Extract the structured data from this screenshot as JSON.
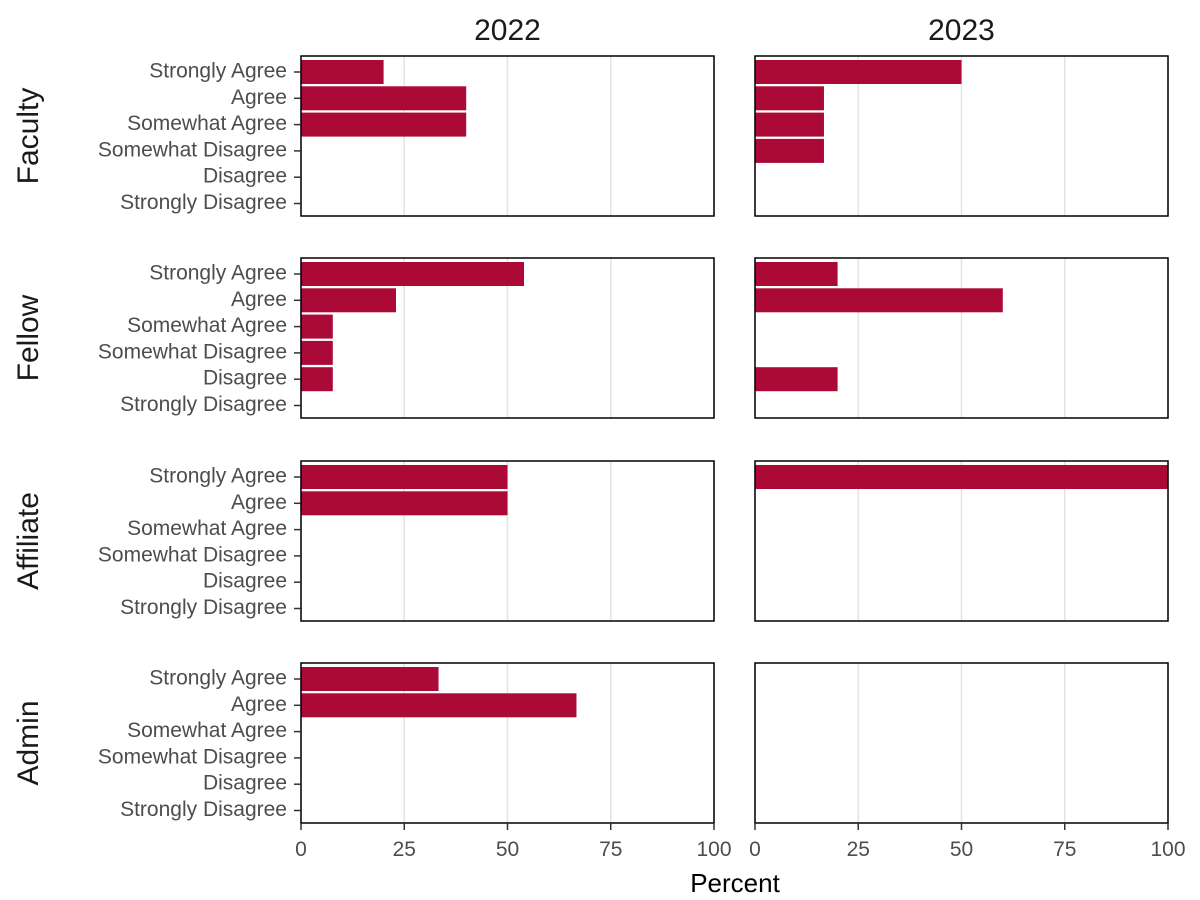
{
  "chart_data": {
    "type": "bar",
    "orientation": "horizontal",
    "facet_columns": [
      "2022",
      "2023"
    ],
    "facet_rows": [
      "Faculty",
      "Fellow",
      "Affiliate",
      "Admin"
    ],
    "categories": [
      "Strongly Agree",
      "Agree",
      "Somewhat Agree",
      "Somewhat Disagree",
      "Disagree",
      "Strongly Disagree"
    ],
    "xlabel": "Percent",
    "xlim": [
      0,
      100
    ],
    "xticks": [
      "0",
      "25",
      "50",
      "75",
      "100"
    ],
    "grid": "vertical major",
    "bar_color": "#AB0A36",
    "panels": [
      {
        "row": "Faculty",
        "column": "2022",
        "values": [
          20,
          40,
          40,
          0,
          0,
          0
        ]
      },
      {
        "row": "Faculty",
        "column": "2023",
        "values": [
          50,
          16.7,
          16.7,
          16.7,
          0,
          0
        ]
      },
      {
        "row": "Fellow",
        "column": "2022",
        "values": [
          54,
          23,
          7.7,
          7.7,
          7.7,
          0
        ]
      },
      {
        "row": "Fellow",
        "column": "2023",
        "values": [
          20,
          60,
          0,
          0,
          20,
          0
        ]
      },
      {
        "row": "Affiliate",
        "column": "2022",
        "values": [
          50,
          50,
          0,
          0,
          0,
          0
        ]
      },
      {
        "row": "Affiliate",
        "column": "2023",
        "values": [
          100,
          0,
          0,
          0,
          0,
          0
        ]
      },
      {
        "row": "Admin",
        "column": "2022",
        "values": [
          33.3,
          66.7,
          0,
          0,
          0,
          0
        ]
      },
      {
        "row": "Admin",
        "column": "2023",
        "values": [
          0,
          0,
          0,
          0,
          0,
          0
        ]
      }
    ]
  }
}
